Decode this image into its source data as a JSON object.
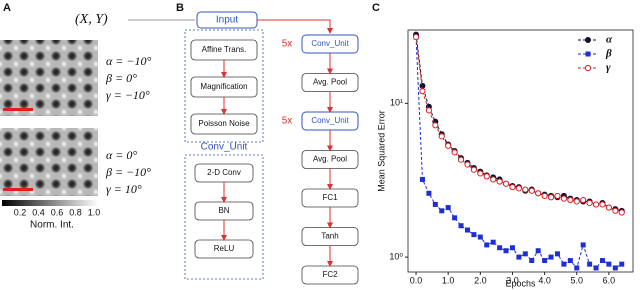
{
  "panel_labels": [
    "A",
    "B",
    "C"
  ],
  "panel_a": {
    "coordinate": "(X, Y)",
    "images": [
      {
        "angles": [
          "α = −10°",
          "β = 0°",
          "γ = −10°"
        ]
      },
      {
        "angles": [
          "α = 0°",
          "β = −10°",
          "γ = 10°"
        ]
      }
    ],
    "colorbar": {
      "ticks": [
        "0.2",
        "0.4",
        "0.6",
        "0.8",
        "1.0"
      ],
      "label": "Norm. Int."
    }
  },
  "diagram": {
    "input": "Input",
    "augmentation": [
      "Affine Trans.",
      "Magnification",
      "Poisson Noise"
    ],
    "conv_unit": {
      "title": "Conv_Unit",
      "layers": [
        "2-D Conv",
        "BN",
        "ReLU"
      ]
    },
    "network": [
      {
        "label": "Conv_Unit",
        "repeat": "5x"
      },
      {
        "label": "Avg. Pool"
      },
      {
        "label": "Conv_Unit",
        "repeat": "5x"
      },
      {
        "label": "Avg. Pool"
      },
      {
        "label": "FC1"
      },
      {
        "label": "Tanh"
      },
      {
        "label": "FC2"
      }
    ]
  },
  "chart_data": {
    "type": "line",
    "x_label": "Epochs",
    "y_label": "Mean Squared Error",
    "yscale": "log",
    "linestyle": "dashed",
    "legend": "upper right",
    "xlim": [
      -0.25,
      6.75
    ],
    "ylim": [
      0.8,
      30
    ],
    "xticks": [
      {
        "value": 0,
        "label": "0.0"
      },
      {
        "value": 1,
        "label": "1.0"
      },
      {
        "value": 2,
        "label": "2.0"
      },
      {
        "value": 3,
        "label": "3.0"
      },
      {
        "value": 4,
        "label": "4.0"
      },
      {
        "value": 5,
        "label": "5.0"
      },
      {
        "value": 6,
        "label": "6.0"
      }
    ],
    "yticks": [
      {
        "value": 1,
        "label": "10⁰"
      },
      {
        "value": 10,
        "label": "10¹"
      }
    ],
    "x": [
      0,
      0.2,
      0.4,
      0.6,
      0.8,
      1.0,
      1.2,
      1.4,
      1.6,
      1.8,
      2.0,
      2.2,
      2.4,
      2.6,
      2.8,
      3.0,
      3.2,
      3.4,
      3.6,
      3.8,
      4.0,
      4.2,
      4.4,
      4.6,
      4.8,
      5.0,
      5.2,
      5.4,
      5.6,
      5.8,
      6.0,
      6.2,
      6.4
    ],
    "series": [
      {
        "name": "α",
        "color": "#111133",
        "marker": "circle",
        "values": [
          28,
          13,
          9.5,
          7.6,
          6.3,
          5.4,
          4.9,
          4.4,
          4.1,
          3.8,
          3.6,
          3.4,
          3.3,
          3.2,
          3.0,
          2.9,
          2.85,
          2.7,
          2.75,
          2.6,
          2.55,
          2.5,
          2.45,
          2.5,
          2.4,
          2.35,
          2.3,
          2.3,
          2.2,
          2.25,
          2.1,
          2.05,
          2.0
        ]
      },
      {
        "name": "β",
        "color": "#1f2fd6",
        "marker": "square",
        "values": [
          27,
          3.2,
          2.6,
          2.2,
          2.0,
          2.1,
          1.8,
          1.6,
          1.5,
          1.4,
          1.35,
          1.2,
          1.25,
          1.15,
          1.1,
          1.15,
          1.0,
          1.05,
          0.95,
          1.1,
          0.95,
          1.0,
          1.05,
          0.9,
          0.95,
          0.85,
          1.2,
          0.9,
          0.85,
          0.95,
          0.9,
          0.85,
          0.9
        ]
      },
      {
        "name": "γ",
        "color": "#e02020",
        "marker": "open-circle",
        "values": [
          27,
          12,
          9.0,
          7.2,
          6.1,
          5.3,
          4.8,
          4.3,
          4.0,
          3.7,
          3.5,
          3.35,
          3.2,
          3.1,
          3.0,
          2.85,
          2.8,
          2.75,
          2.7,
          2.6,
          2.5,
          2.45,
          2.5,
          2.4,
          2.35,
          2.3,
          2.35,
          2.25,
          2.2,
          2.2,
          2.1,
          2.0,
          1.95
        ]
      }
    ]
  }
}
